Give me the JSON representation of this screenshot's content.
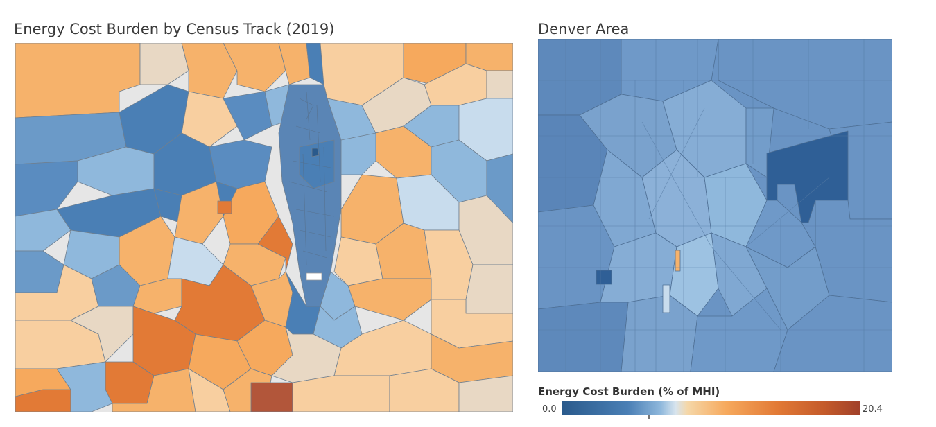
{
  "left_panel": {
    "title": "Energy Cost Burden by Census Track (2019)"
  },
  "right_panel": {
    "title": "Denver Area"
  },
  "legend": {
    "title": "Energy Cost Burden (% of MHI)",
    "min_label": "0.0",
    "max_label": "20.4",
    "min_value": 0.0,
    "max_value": 20.4,
    "palette": [
      "#2a5a8c",
      "#4a7fb5",
      "#8fb8dc",
      "#d7e4ee",
      "#f5d7a8",
      "#f6a95d",
      "#e27a36",
      "#a0402a"
    ]
  }
}
